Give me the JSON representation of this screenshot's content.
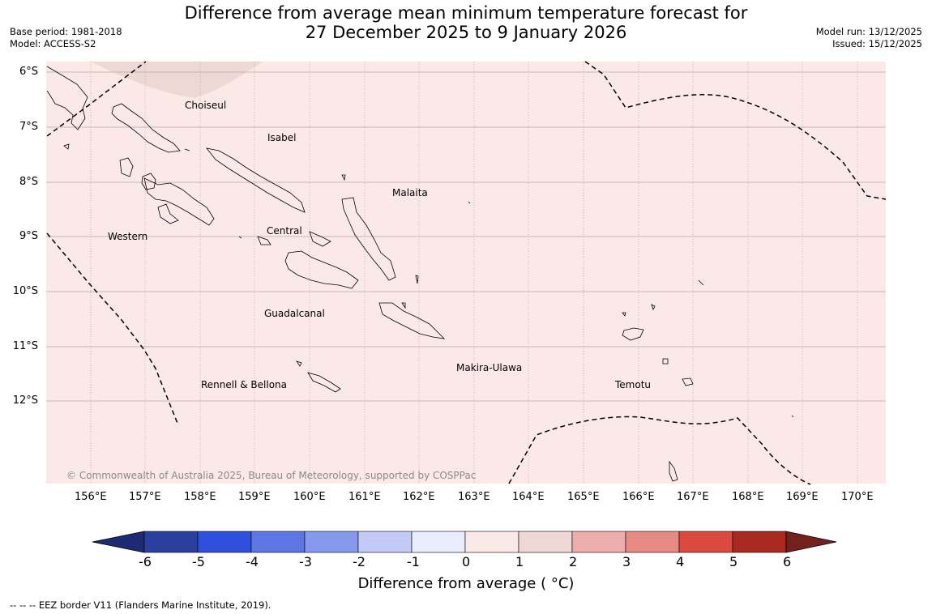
{
  "header": {
    "title_line1": "Difference from average mean minimum temperature forecast for",
    "title_line2": "27 December 2025 to 9 January 2026",
    "base_period": "Base period: 1981-2018",
    "model": "Model: ACCESS-S2",
    "model_run": "Model run: 13/12/2025",
    "issued": "Issued: 15/12/2025"
  },
  "map": {
    "background_color": "#fbe9e8",
    "shade_color": "#eed8d5",
    "grid_color": "#b8a6a6",
    "lat_labels": [
      "6°S",
      "7°S",
      "8°S",
      "9°S",
      "10°S",
      "11°S",
      "12°S"
    ],
    "lon_labels": [
      "156°E",
      "157°E",
      "158°E",
      "159°E",
      "160°E",
      "161°E",
      "162°E",
      "163°E",
      "164°E",
      "165°E",
      "166°E",
      "167°E",
      "168°E",
      "169°E",
      "170°E"
    ],
    "places": {
      "choiseul": "Choiseul",
      "isabel": "Isabel",
      "malaita": "Malaita",
      "western": "Western",
      "central": "Central",
      "guadalcanal": "Guadalcanal",
      "makira": "Makira-Ulawa",
      "rennell": "Rennell & Bellona",
      "temotu": "Temotu"
    },
    "copyright": "© Commonwealth of Australia 2025, Bureau of Meteorology, supported by COSPPac"
  },
  "colorbar": {
    "ticks": [
      "-6",
      "-5",
      "-4",
      "-3",
      "-2",
      "-1",
      "0",
      "1",
      "2",
      "3",
      "4",
      "5",
      "6"
    ],
    "colors": [
      "#2a3f9e",
      "#2f50dc",
      "#5c77e4",
      "#8799ec",
      "#c2caf5",
      "#e9ecfa",
      "#fbe9e8",
      "#eed8d5",
      "#edaeab",
      "#e68a83",
      "#da4a3f",
      "#aa2a22"
    ],
    "min_color": "#1e2a72",
    "max_color": "#74201c",
    "title": "Difference from average ( °C)"
  },
  "footnote": "--  --  -- EEZ border V11 (Flanders Marine Institute, 2019)."
}
